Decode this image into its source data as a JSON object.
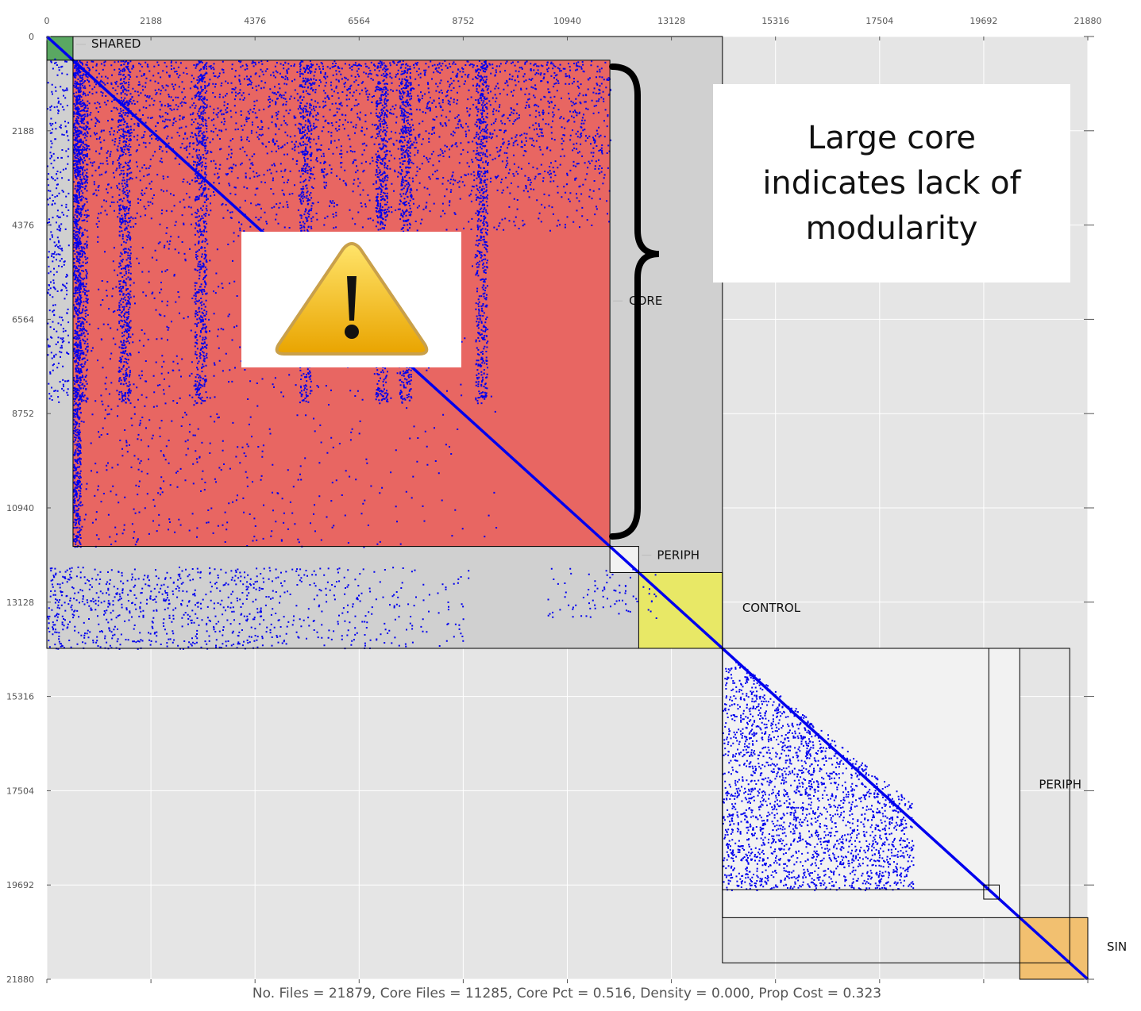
{
  "chart_data": {
    "type": "heatmap",
    "title": "",
    "xlabel": "",
    "ylabel": "",
    "xlim": [
      0,
      21880
    ],
    "ylim": [
      0,
      21880
    ],
    "x_ticks": [
      0,
      2188,
      4376,
      6564,
      8752,
      10940,
      13128,
      15316,
      17504,
      19692,
      21880
    ],
    "y_ticks": [
      0,
      2188,
      4376,
      6564,
      8752,
      10940,
      13128,
      15316,
      17504,
      19692,
      21880
    ],
    "grid": true,
    "regions": [
      {
        "name": "SHARED",
        "start": 0,
        "end": 550,
        "color": "#5aa862"
      },
      {
        "name": "CORE",
        "start": 550,
        "end": 11835,
        "color": "#e86662"
      },
      {
        "name": "PERIPH",
        "start": 11835,
        "end": 12440,
        "color": "#f2f2f2"
      },
      {
        "name": "CONTROL",
        "start": 12440,
        "end": 14200,
        "color": "#e8e866"
      },
      {
        "name": "PERIPH",
        "start": 14200,
        "end": 20450,
        "color": "#f2f2f2"
      },
      {
        "name": "SIN",
        "start": 20450,
        "end": 21880,
        "color": "#f2c070"
      }
    ],
    "annotations": [
      "No. Files = 21879, Core Files = 11285, Core Pct = 0.516, Density = 0.000, Prop Cost = 0.323"
    ]
  },
  "callout": {
    "lines": [
      "Large core",
      "indicates lack of",
      "modularity"
    ]
  },
  "colors": {
    "background": "#e5e5e5",
    "dependency_dots": "#0000ee",
    "upper_block": "#d0d0d0",
    "core": "#e86662",
    "shared": "#5aa862",
    "control": "#e8e866",
    "singleton": "#f2c070",
    "periph": "#f2f2f2",
    "warning": "#f0b400"
  },
  "icons": {
    "warning": "warning-triangle-icon",
    "brace": "curly-brace-icon"
  }
}
